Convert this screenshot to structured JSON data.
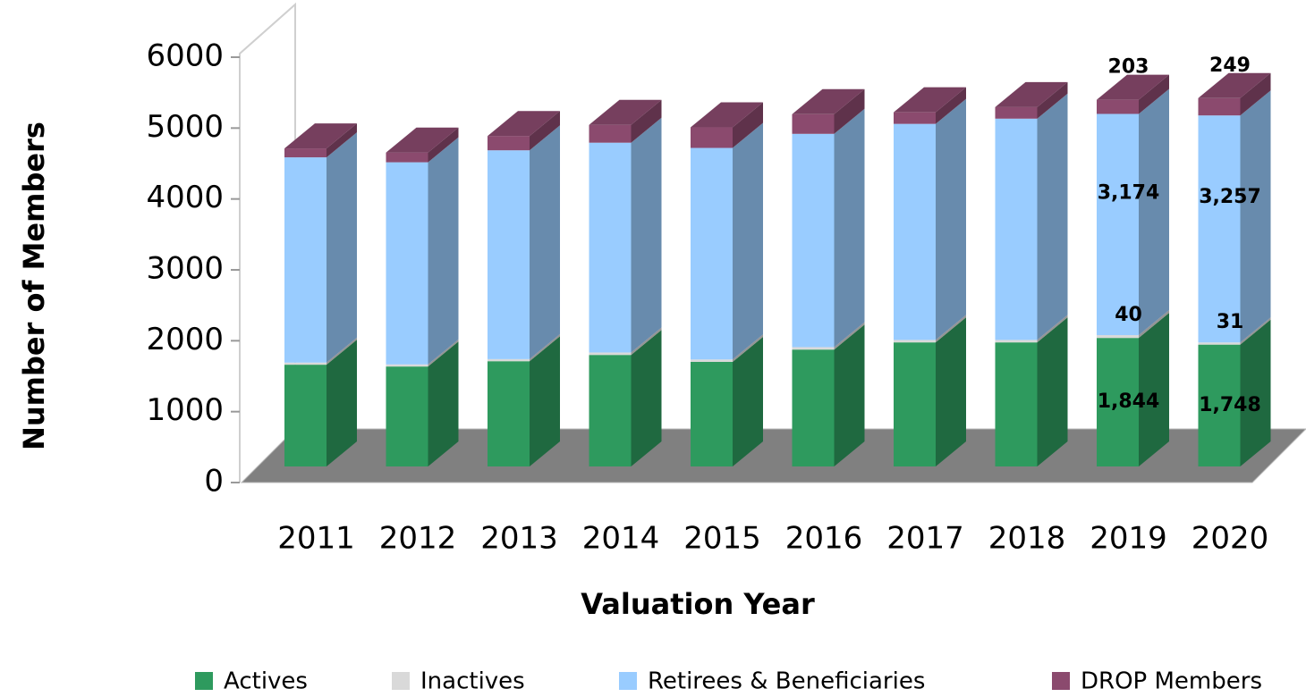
{
  "chart_data": {
    "type": "bar3d_stacked",
    "y_axis_label": "Number of Members",
    "x_axis_label": "Valuation Year",
    "categories": [
      "2011",
      "2012",
      "2013",
      "2014",
      "2015",
      "2016",
      "2017",
      "2018",
      "2019",
      "2020"
    ],
    "series": [
      {
        "name": "Actives",
        "color": "#2e9a5e",
        "values": [
          1460,
          1434,
          1510,
          1600,
          1500,
          1677,
          1780,
          1780,
          1844,
          1748
        ],
        "value_labels": [
          null,
          null,
          null,
          null,
          null,
          null,
          null,
          null,
          "1,844",
          "1,748"
        ]
      },
      {
        "name": "Inactives",
        "color": "#d9d9d9",
        "values": [
          30,
          30,
          30,
          35,
          35,
          35,
          35,
          35,
          40,
          31
        ]
      },
      {
        "name": "Retirees & Beneficiaries",
        "color": "#99ccff",
        "values": [
          2945,
          2900,
          2996,
          3010,
          3035,
          3060,
          3100,
          3175,
          3174,
          3257
        ],
        "value_labels": [
          null,
          null,
          null,
          null,
          null,
          null,
          null,
          null,
          "3,174",
          "3,257"
        ]
      },
      {
        "name": "DROP Members",
        "color": "#8b4a6e",
        "values": [
          128,
          140,
          205,
          256,
          295,
          282,
          166,
          166,
          203,
          249
        ]
      }
    ],
    "ylim": [
      0,
      6000
    ],
    "yticks": [
      0,
      1000,
      2000,
      3000,
      4000,
      5000,
      6000
    ],
    "legend": "bottom"
  }
}
